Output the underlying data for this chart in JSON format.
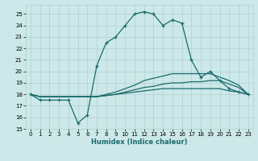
{
  "xlabel": "Humidex (Indice chaleur)",
  "bg_color": "#cce8e8",
  "line_color": "#1a6b6b",
  "grid_color": "#b0d0d0",
  "xlim": [
    -0.5,
    23.5
  ],
  "ylim": [
    15,
    25.8
  ],
  "yticks": [
    15,
    16,
    17,
    18,
    19,
    20,
    21,
    22,
    23,
    24,
    25
  ],
  "xticks": [
    0,
    1,
    2,
    3,
    4,
    5,
    6,
    7,
    8,
    9,
    10,
    11,
    12,
    13,
    14,
    15,
    16,
    17,
    18,
    19,
    20,
    21,
    22,
    23
  ],
  "series": [
    {
      "y": [
        18.0,
        17.5,
        17.5,
        17.5,
        17.5,
        15.5,
        16.2,
        20.5,
        22.5,
        23.0,
        24.0,
        25.0,
        25.2,
        25.0,
        24.0,
        24.5,
        24.2,
        21.0,
        19.5,
        20.0,
        19.2,
        18.5,
        18.2,
        18.0
      ],
      "marker": true
    },
    {
      "y": [
        18.0,
        17.8,
        17.8,
        17.8,
        17.8,
        17.8,
        17.8,
        17.8,
        17.9,
        18.0,
        18.1,
        18.2,
        18.3,
        18.4,
        18.5,
        18.5,
        18.5,
        18.5,
        18.5,
        18.5,
        18.5,
        18.3,
        18.2,
        18.0
      ],
      "marker": false
    },
    {
      "y": [
        18.0,
        17.8,
        17.8,
        17.8,
        17.8,
        17.8,
        17.8,
        17.8,
        17.9,
        18.0,
        18.2,
        18.4,
        18.6,
        18.7,
        18.9,
        19.0,
        19.0,
        19.1,
        19.1,
        19.2,
        19.2,
        18.9,
        18.6,
        18.0
      ],
      "marker": false
    },
    {
      "y": [
        18.0,
        17.8,
        17.8,
        17.8,
        17.8,
        17.8,
        17.8,
        17.8,
        18.0,
        18.2,
        18.5,
        18.8,
        19.2,
        19.4,
        19.6,
        19.8,
        19.8,
        19.8,
        19.8,
        19.8,
        19.5,
        19.2,
        18.8,
        18.0
      ],
      "marker": false
    }
  ]
}
